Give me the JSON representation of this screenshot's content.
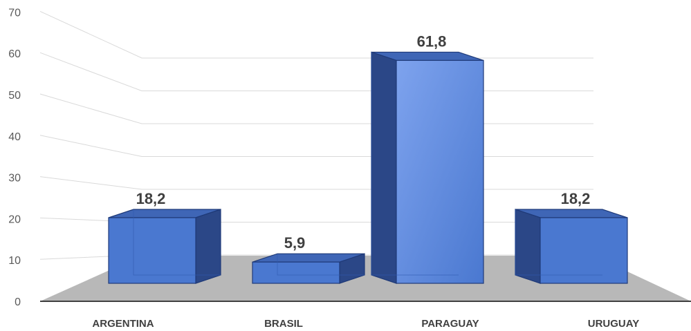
{
  "chart_data": {
    "type": "bar",
    "style": "3d-clustered-column",
    "categories": [
      "ARGENTINA",
      "BRASIL",
      "PARAGUAY",
      "URUGUAY"
    ],
    "values": [
      18.2,
      5.9,
      61.8,
      18.2
    ],
    "value_labels": [
      "18,2",
      "5,9",
      "61,8",
      "18,2"
    ],
    "yticks": [
      "0",
      "10",
      "20",
      "30",
      "40",
      "50",
      "60",
      "70"
    ],
    "ylim": [
      0,
      70
    ],
    "title": "",
    "xlabel": "",
    "ylabel": "",
    "legend": "none",
    "grid": true,
    "colors": {
      "bar_front": "#4a78d0",
      "bar_side": "#2b4787",
      "bar_top": "#3f66b6",
      "bar_edge": "#1f3a78",
      "floor": "#b8b8b8",
      "axis": "#404040",
      "grid": "#d9d9d9"
    }
  }
}
